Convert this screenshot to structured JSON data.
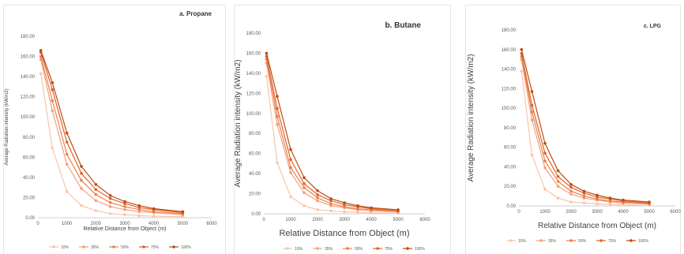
{
  "chart_data": [
    {
      "type": "line",
      "title": "a. Propane",
      "xlabel": "Relative Distance from Object (m)",
      "ylabel": "Average Radiation intensity (kW/m2)",
      "xlim": [
        0,
        6000
      ],
      "ylim": [
        0,
        180
      ],
      "xticks": [
        "0",
        "1000",
        "2000",
        "3000",
        "4000",
        "5000",
        "6000"
      ],
      "yticks": [
        "0.00",
        "20.00",
        "40.00",
        "60.00",
        "80.00",
        "100.00",
        "120.00",
        "140.00",
        "160.00",
        "180.00"
      ],
      "legend_position": "bottom",
      "grid": false,
      "x": [
        100,
        500,
        1000,
        1500,
        2000,
        2500,
        3000,
        3500,
        4000,
        5000
      ],
      "series": [
        {
          "name": "10%",
          "color": "#f8c5aa",
          "values": [
            143,
            69,
            26,
            12,
            7,
            4,
            3,
            2,
            1.5,
            1
          ]
        },
        {
          "name": "35%",
          "color": "#f2a07a",
          "values": [
            157,
            106,
            53,
            29,
            17,
            11,
            8,
            6,
            5,
            3
          ]
        },
        {
          "name": "50%",
          "color": "#ec7e4c",
          "values": [
            160,
            116,
            63,
            37,
            23,
            15,
            11,
            8,
            6,
            4
          ]
        },
        {
          "name": "75%",
          "color": "#e06126",
          "values": [
            164,
            127,
            75,
            44,
            28,
            19,
            14,
            10,
            8,
            5
          ]
        },
        {
          "name": "100%",
          "color": "#b84c12",
          "values": [
            166,
            134,
            84,
            51,
            33,
            22,
            16,
            12,
            9,
            6
          ]
        }
      ]
    },
    {
      "type": "line",
      "title": "b. Butane",
      "xlabel": "Relative Distance from Object (m)",
      "ylabel": "Average Radiation intensity (kW/m2)",
      "xlim": [
        0,
        6000
      ],
      "ylim": [
        0,
        180
      ],
      "xticks": [
        "0",
        "1000",
        "2000",
        "3000",
        "4000",
        "5000",
        "6000"
      ],
      "yticks": [
        "0.00",
        "20.00",
        "40.00",
        "60.00",
        "80.00",
        "100.00",
        "120.00",
        "140.00",
        "160.00",
        "180.00"
      ],
      "legend_position": "bottom",
      "grid": false,
      "x": [
        100,
        500,
        1000,
        1500,
        2000,
        2500,
        3000,
        3500,
        4000,
        5000
      ],
      "series": [
        {
          "name": "10%",
          "color": "#f8c5aa",
          "values": [
            137,
            51,
            17,
            8,
            4,
            3,
            2,
            1.5,
            1,
            0.5
          ]
        },
        {
          "name": "35%",
          "color": "#f2a07a",
          "values": [
            150,
            89,
            41,
            21,
            13,
            8,
            6,
            4,
            3,
            2
          ]
        },
        {
          "name": "50%",
          "color": "#ec7e4c",
          "values": [
            154,
            97,
            46,
            26,
            16,
            10,
            7,
            5,
            4,
            2
          ]
        },
        {
          "name": "75%",
          "color": "#e06126",
          "values": [
            157,
            105,
            54,
            30,
            19,
            13,
            9,
            7,
            5,
            3
          ]
        },
        {
          "name": "100%",
          "color": "#b84c12",
          "values": [
            160,
            117,
            64,
            36,
            23,
            15,
            11,
            8,
            6,
            4
          ]
        }
      ]
    },
    {
      "type": "line",
      "title": "c. LPG",
      "xlabel": "Relative Distance from Object (m)",
      "ylabel": "Average Radiation intensity (kW/m2)",
      "xlim": [
        0,
        6000
      ],
      "ylim": [
        0,
        180
      ],
      "xticks": [
        "0",
        "1000",
        "2000",
        "3000",
        "4000",
        "5000",
        "6000"
      ],
      "yticks": [
        "0.00",
        "20.00",
        "40.00",
        "60.00",
        "80.00",
        "100.00",
        "120.00",
        "140.00",
        "160.00",
        "180.00"
      ],
      "legend_position": "bottom",
      "grid": false,
      "x": [
        100,
        500,
        1000,
        1500,
        2000,
        2500,
        3000,
        3500,
        4000,
        5000
      ],
      "series": [
        {
          "name": "10%",
          "color": "#f8c5aa",
          "values": [
            138,
            52,
            17,
            8,
            4,
            3,
            2,
            1.5,
            1,
            0.5
          ]
        },
        {
          "name": "35%",
          "color": "#f2a07a",
          "values": [
            150,
            88,
            39,
            20,
            12,
            8,
            6,
            4,
            3,
            2
          ]
        },
        {
          "name": "50%",
          "color": "#ec7e4c",
          "values": [
            153,
            96,
            46,
            25,
            15,
            10,
            7,
            5,
            4,
            2
          ]
        },
        {
          "name": "75%",
          "color": "#e06126",
          "values": [
            156,
            103,
            54,
            30,
            19,
            13,
            9,
            7,
            5,
            3
          ]
        },
        {
          "name": "100%",
          "color": "#b84c12",
          "values": [
            160,
            117,
            64,
            36,
            22,
            15,
            11,
            8,
            6,
            4
          ]
        }
      ]
    }
  ]
}
